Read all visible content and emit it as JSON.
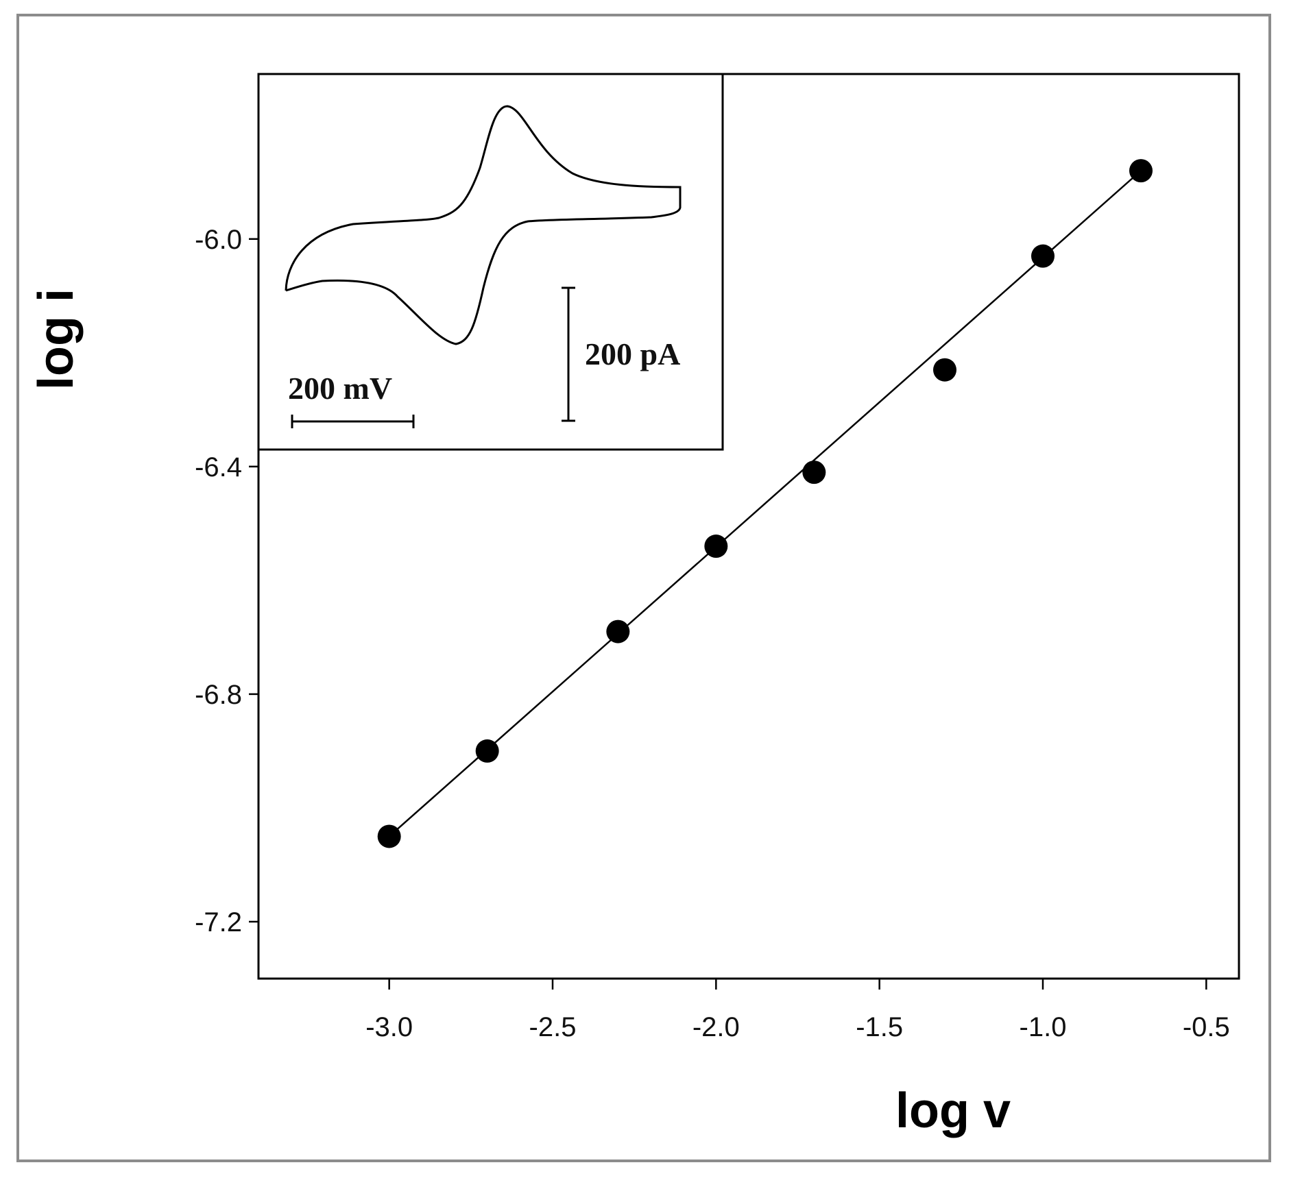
{
  "chart_data": {
    "type": "scatter",
    "xlabel": "log v",
    "ylabel": "log i",
    "xlim": [
      -3.4,
      -0.4
    ],
    "ylim": [
      -7.3,
      -5.71
    ],
    "xticks": [
      -3.0,
      -2.5,
      -2.0,
      -1.5,
      -1.0,
      -0.5
    ],
    "xtick_labels": [
      "-3.0",
      "-2.5",
      "-2.0",
      "-1.5",
      "-1.0",
      "-0.5"
    ],
    "yticks": [
      -6.0,
      -6.4,
      -6.8,
      -7.2
    ],
    "ytick_labels": [
      "-6.0",
      "-6.4",
      "-6.8",
      "-7.2"
    ],
    "grid": false,
    "legend": "none",
    "series": [
      {
        "marker": "filled-circle",
        "points": [
          {
            "x": -3.0,
            "y": -7.05
          },
          {
            "x": -2.7,
            "y": -6.9
          },
          {
            "x": -2.3,
            "y": -6.69
          },
          {
            "x": -2.0,
            "y": -6.54
          },
          {
            "x": -1.7,
            "y": -6.41
          },
          {
            "x": -1.3,
            "y": -6.23
          },
          {
            "x": -1.0,
            "y": -6.03
          },
          {
            "x": -0.7,
            "y": -5.88
          }
        ]
      }
    ],
    "fit_line": {
      "x": [
        -3.0,
        -0.7
      ],
      "y": [
        -7.05,
        -5.88
      ]
    },
    "inset": {
      "type": "cyclic-voltammogram",
      "scale_bar_x_label": "200 mV",
      "scale_bar_y_label": "200 pA"
    },
    "colors": {
      "marks": "#000000",
      "frame": "#8c8c8c",
      "background": "#ffffff"
    }
  }
}
